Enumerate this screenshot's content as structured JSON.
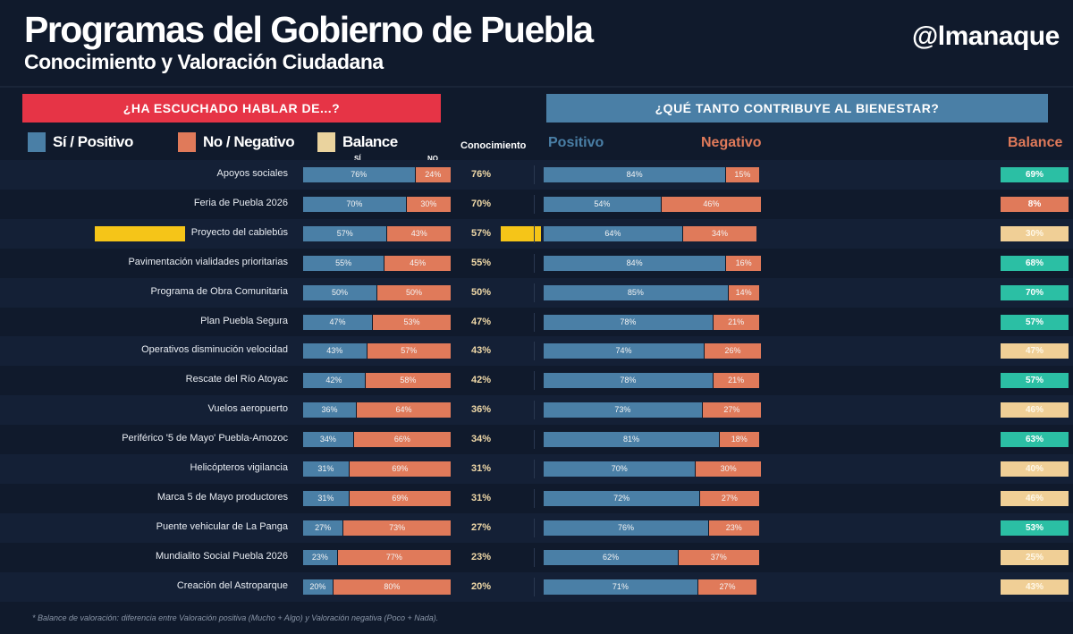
{
  "header": {
    "title": "Programas del Gobierno de Puebla",
    "subtitle": "Conocimiento y Valoración Ciudadana",
    "logo": "@lmanaque"
  },
  "banners": {
    "left": "¿HA ESCUCHADO HABLAR DE...?",
    "right": "¿QUÉ TANTO CONTRIBUYE AL BIENESTAR?"
  },
  "legend": [
    {
      "label": "Sí / Positivo",
      "color": "#4a7fa6"
    },
    {
      "label": "No / Negativo",
      "color": "#e07a5a"
    },
    {
      "label": "Balance",
      "color": "#ead39e"
    }
  ],
  "column_headers": {
    "conocimiento": "Conocimiento",
    "positivo": "Positivo",
    "negativo": "Negativo",
    "balance": "Balance",
    "si": "SÍ",
    "no": "NO"
  },
  "colors": {
    "positive": "#4a7fa6",
    "negative": "#e07a5a",
    "balance_high": "#2bbfa4",
    "balance_mid": "#f0cf96",
    "balance_low": "#e07a5a",
    "highlight": "#f5c518"
  },
  "chart_data": {
    "type": "bar",
    "stacked": true,
    "orientation": "horizontal",
    "xlim": [
      0,
      100
    ],
    "categories": [
      "Apoyos sociales",
      "Feria de Puebla 2026",
      "Proyecto del cablebús",
      "Pavimentación vialidades prioritarias",
      "Programa de Obra Comunitaria",
      "Plan Puebla Segura",
      "Operativos disminución velocidad",
      "Rescate del Río Atoyac",
      "Vuelos aeropuerto",
      "Periférico '5 de Mayo' Puebla-Amozoc",
      "Helicópteros vigilancia",
      "Marca 5 de Mayo productores",
      "Puente vehicular de La Panga",
      "Mundialito Social Puebla 2026",
      "Creación del Astroparque"
    ],
    "highlighted": [
      "Proyecto del cablebús"
    ],
    "conocimiento_si": [
      76,
      70,
      57,
      55,
      50,
      47,
      43,
      42,
      36,
      34,
      31,
      31,
      27,
      23,
      20
    ],
    "conocimiento_no": [
      24,
      30,
      43,
      45,
      50,
      53,
      57,
      58,
      64,
      66,
      69,
      69,
      73,
      77,
      80
    ],
    "valoracion_positivo": [
      84,
      54,
      64,
      84,
      85,
      78,
      74,
      78,
      73,
      81,
      70,
      72,
      76,
      62,
      71
    ],
    "valoracion_negativo": [
      15,
      46,
      34,
      16,
      14,
      21,
      26,
      21,
      27,
      18,
      30,
      27,
      23,
      37,
      27
    ],
    "balance": [
      69,
      8,
      30,
      68,
      70,
      57,
      47,
      57,
      46,
      63,
      40,
      46,
      53,
      25,
      43
    ],
    "balance_level": [
      "high",
      "low",
      "mid",
      "high",
      "high",
      "high",
      "mid",
      "high",
      "mid",
      "high",
      "mid",
      "mid",
      "high",
      "mid",
      "mid"
    ]
  },
  "footnote": "* Balance de valoración: diferencia entre Valoración positiva (Mucho + Algo) y Valoración negativa (Poco + Nada)."
}
